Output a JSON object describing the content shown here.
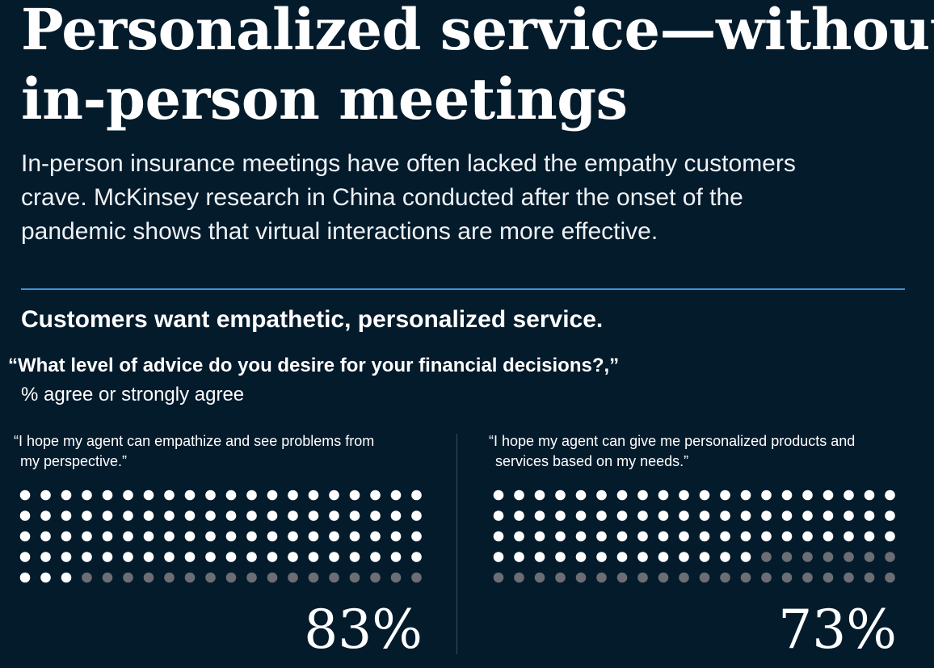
{
  "header": {
    "title_line1": "Personalized service—without",
    "title_line2": "in-person meetings",
    "subtitle_line1": "In-person insurance meetings have often lacked the empathy customers",
    "subtitle_line2": "crave. McKinsey research in China conducted after the onset of the",
    "subtitle_line3": "pandemic shows that virtual interactions are more effective."
  },
  "section": {
    "heading": "Customers want empathetic, personalized service.",
    "question": "“What level of advice do you desire for your financial decisions?,”",
    "measure": "% agree or strongly agree"
  },
  "colors": {
    "background": "#041b2c",
    "rule": "#3b95d9",
    "dot_filled": "#ffffff",
    "dot_empty": "#6b6e72"
  },
  "chart_data": [
    {
      "type": "waffle",
      "label_line1": "“I hope my agent can empathize and see problems from",
      "label_line2": "my perspective.”",
      "value": 83,
      "value_label": "83%",
      "total": 100,
      "rows": 5,
      "columns": 20
    },
    {
      "type": "waffle",
      "label_line1": "“I hope my agent can give me personalized products and",
      "label_line2": "services based on my needs.”",
      "value": 73,
      "value_label": "73%",
      "total": 100,
      "rows": 5,
      "columns": 20
    }
  ]
}
